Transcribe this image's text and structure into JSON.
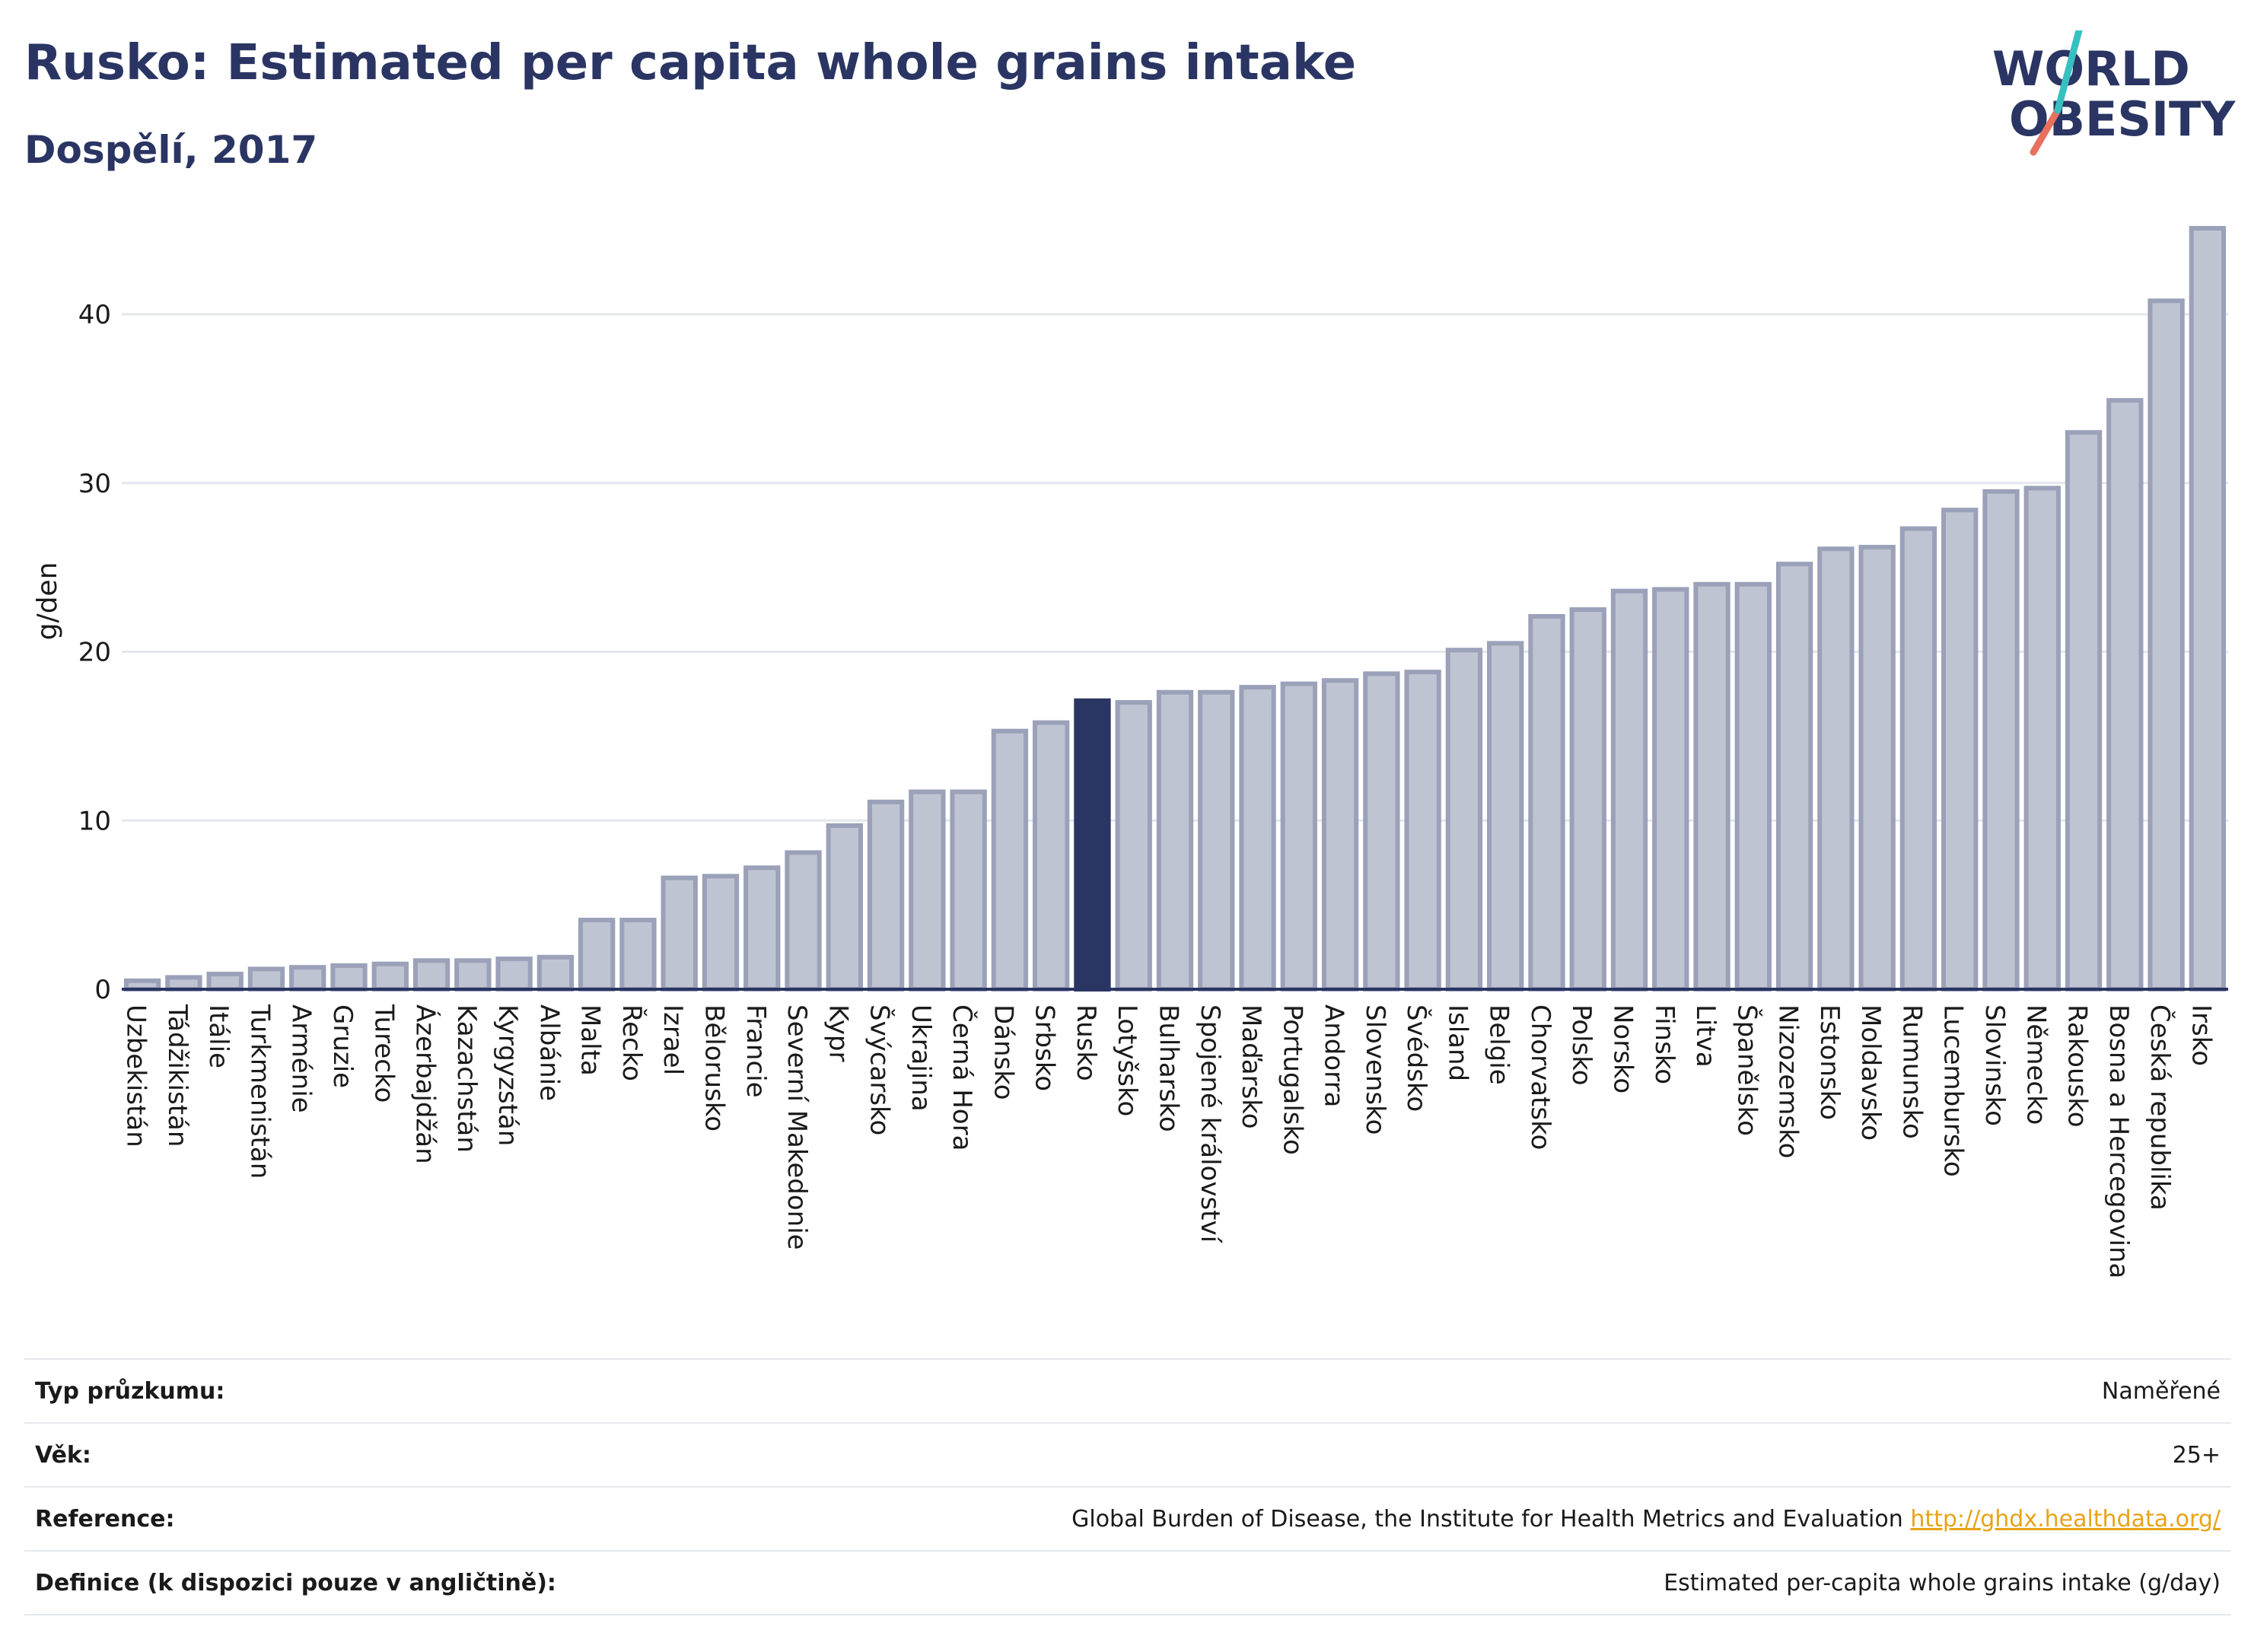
{
  "header": {
    "title": "Rusko: Estimated per capita whole grains intake",
    "subtitle": "Dospělí, 2017"
  },
  "logo": {
    "line1": "WORLD",
    "line2": "OBESITY"
  },
  "chart_data": {
    "type": "bar",
    "title": "Rusko: Estimated per capita whole grains intake",
    "subtitle": "Dospělí, 2017",
    "xlabel": "",
    "ylabel": "g/den",
    "ylim": [
      0,
      46
    ],
    "yticks": [
      0,
      10,
      20,
      30,
      40
    ],
    "grid": true,
    "highlight": "Rusko",
    "colors": {
      "bar": "#bfc4d2",
      "bar_border": "#9aa1b8",
      "highlight": "#2a3563",
      "grid": "#e4e6ee",
      "axis": "#2a3563"
    },
    "categories": [
      "Uzbekistán",
      "Tádžikistán",
      "Itálie",
      "Turkmenistán",
      "Arménie",
      "Gruzie",
      "Turecko",
      "Ázerbajdžán",
      "Kazachstán",
      "Kyrgyzstán",
      "Albánie",
      "Malta",
      "Řecko",
      "Izrael",
      "Bělorusko",
      "Francie",
      "Severní Makedonie",
      "Kypr",
      "Švýcarsko",
      "Ukrajina",
      "Černá Hora",
      "Dánsko",
      "Srbsko",
      "Rusko",
      "Lotyšsko",
      "Bulharsko",
      "Spojené království",
      "Maďarsko",
      "Portugalsko",
      "Andorra",
      "Slovensko",
      "Švédsko",
      "Island",
      "Belgie",
      "Chorvatsko",
      "Polsko",
      "Norsko",
      "Finsko",
      "Litva",
      "Španělsko",
      "Nizozemsko",
      "Estonsko",
      "Moldavsko",
      "Rumunsko",
      "Lucembursko",
      "Slovinsko",
      "Německo",
      "Rakousko",
      "Bosna a Hercegovina",
      "Česká republika",
      "Irsko"
    ],
    "values": [
      0.5,
      0.7,
      0.9,
      1.2,
      1.3,
      1.4,
      1.5,
      1.7,
      1.7,
      1.8,
      1.9,
      4.1,
      4.1,
      6.6,
      6.7,
      7.2,
      8.1,
      9.7,
      11.1,
      11.7,
      11.7,
      15.3,
      15.8,
      17.1,
      17.0,
      17.6,
      17.6,
      17.9,
      18.1,
      18.3,
      18.7,
      18.8,
      20.1,
      20.5,
      22.1,
      22.5,
      23.6,
      23.7,
      24.0,
      24.0,
      25.2,
      26.1,
      26.2,
      27.3,
      28.4,
      29.5,
      29.7,
      33.0,
      34.9,
      40.8,
      45.1
    ]
  },
  "info_table": [
    {
      "label": "Typ průzkumu:",
      "value": "Naměřené",
      "link": ""
    },
    {
      "label": "Věk:",
      "value": "25+",
      "link": ""
    },
    {
      "label": "Reference:",
      "value": "Global Burden of Disease, the Institute for Health Metrics and Evaluation",
      "link": "http://ghdx.healthdata.org/"
    },
    {
      "label": "Definice (k dispozici pouze v angličtině):",
      "value": "Estimated per-capita whole grains intake (g/day)",
      "link": ""
    }
  ]
}
